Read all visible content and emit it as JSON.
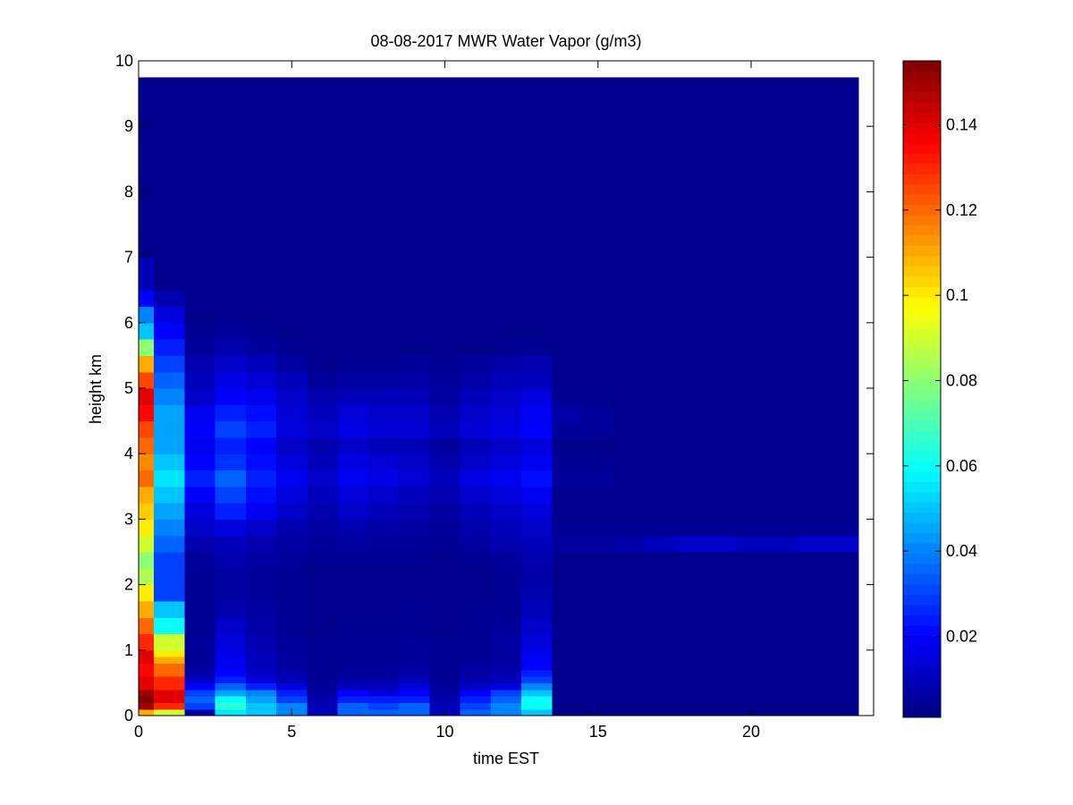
{
  "chart_data": {
    "type": "heatmap",
    "title": "08-08-2017 MWR Water Vapor (g/m3)",
    "xlabel": "time EST",
    "ylabel": "height km",
    "xlim": [
      0,
      24
    ],
    "ylim": [
      0,
      10
    ],
    "x_ticks": [
      0,
      5,
      10,
      15,
      20
    ],
    "y_ticks": [
      0,
      1,
      2,
      3,
      4,
      5,
      6,
      7,
      8,
      9,
      10
    ],
    "colorbar": {
      "colormap": "jet",
      "clim": [
        0.001,
        0.155
      ],
      "ticks": [
        0.02,
        0.04,
        0.06,
        0.08,
        0.1,
        0.12,
        0.14
      ],
      "tick_labels": [
        "0.02",
        "0.04",
        "0.06",
        "0.08",
        "0.1",
        "0.12",
        "0.14"
      ]
    },
    "time_hours": [
      0,
      1,
      2,
      3,
      4,
      5,
      6,
      7,
      8,
      9,
      10,
      11,
      12,
      13,
      14,
      15,
      16,
      17,
      18,
      19,
      20,
      21,
      22,
      23
    ],
    "height_km": [
      0.0,
      0.1,
      0.2,
      0.3,
      0.4,
      0.5,
      0.6,
      0.7,
      0.8,
      0.9,
      1.0,
      1.25,
      1.5,
      1.75,
      2.0,
      2.25,
      2.5,
      2.75,
      3.0,
      3.25,
      3.5,
      3.75,
      4.0,
      4.25,
      4.5,
      4.75,
      5.0,
      5.25,
      5.5,
      5.75,
      6.0,
      6.25,
      6.5,
      7.0,
      7.5,
      8.0,
      8.5,
      9.0,
      9.5
    ],
    "grid_top_km": 9.75,
    "water_vapor_gm3": [
      [
        0.11,
        0.09,
        0.008,
        0.055,
        0.05,
        0.04,
        0.01,
        0.035,
        0.035,
        0.035,
        0.01,
        0.035,
        0.04,
        0.05,
        0.003,
        0.003,
        0.003,
        0.003,
        0.003,
        0.003,
        0.003,
        0.003,
        0.003,
        0.003
      ],
      [
        0.15,
        0.13,
        0.03,
        0.065,
        0.05,
        0.04,
        0.01,
        0.035,
        0.03,
        0.035,
        0.01,
        0.03,
        0.04,
        0.06,
        0.003,
        0.003,
        0.003,
        0.003,
        0.003,
        0.003,
        0.003,
        0.003,
        0.003,
        0.003
      ],
      [
        0.155,
        0.14,
        0.035,
        0.06,
        0.045,
        0.03,
        0.008,
        0.025,
        0.025,
        0.025,
        0.008,
        0.025,
        0.035,
        0.06,
        0.003,
        0.003,
        0.003,
        0.003,
        0.003,
        0.003,
        0.003,
        0.003,
        0.003,
        0.003
      ],
      [
        0.15,
        0.14,
        0.03,
        0.045,
        0.04,
        0.025,
        0.006,
        0.02,
        0.015,
        0.02,
        0.006,
        0.02,
        0.03,
        0.05,
        0.003,
        0.003,
        0.003,
        0.003,
        0.003,
        0.003,
        0.003,
        0.003,
        0.003,
        0.003
      ],
      [
        0.14,
        0.13,
        0.02,
        0.035,
        0.025,
        0.015,
        0.005,
        0.01,
        0.01,
        0.015,
        0.005,
        0.012,
        0.015,
        0.04,
        0.003,
        0.003,
        0.003,
        0.003,
        0.003,
        0.003,
        0.003,
        0.003,
        0.003,
        0.003
      ],
      [
        0.14,
        0.13,
        0.012,
        0.025,
        0.015,
        0.01,
        0.004,
        0.007,
        0.007,
        0.01,
        0.004,
        0.008,
        0.01,
        0.03,
        0.003,
        0.003,
        0.003,
        0.003,
        0.003,
        0.003,
        0.003,
        0.003,
        0.003,
        0.003
      ],
      [
        0.135,
        0.12,
        0.008,
        0.02,
        0.012,
        0.008,
        0.004,
        0.005,
        0.005,
        0.007,
        0.004,
        0.006,
        0.008,
        0.025,
        0.003,
        0.003,
        0.003,
        0.003,
        0.003,
        0.003,
        0.003,
        0.003,
        0.003,
        0.003
      ],
      [
        0.135,
        0.12,
        0.006,
        0.018,
        0.01,
        0.006,
        0.004,
        0.005,
        0.005,
        0.006,
        0.004,
        0.006,
        0.007,
        0.02,
        0.003,
        0.003,
        0.003,
        0.003,
        0.003,
        0.003,
        0.003,
        0.003,
        0.003,
        0.003
      ],
      [
        0.14,
        0.11,
        0.005,
        0.018,
        0.01,
        0.006,
        0.004,
        0.004,
        0.004,
        0.005,
        0.004,
        0.005,
        0.006,
        0.02,
        0.003,
        0.003,
        0.003,
        0.003,
        0.003,
        0.003,
        0.003,
        0.003,
        0.003,
        0.003
      ],
      [
        0.14,
        0.1,
        0.005,
        0.016,
        0.01,
        0.005,
        0.004,
        0.004,
        0.004,
        0.005,
        0.004,
        0.004,
        0.006,
        0.018,
        0.003,
        0.003,
        0.003,
        0.003,
        0.003,
        0.003,
        0.003,
        0.003,
        0.003,
        0.003
      ],
      [
        0.13,
        0.09,
        0.005,
        0.015,
        0.008,
        0.005,
        0.004,
        0.004,
        0.004,
        0.005,
        0.004,
        0.004,
        0.006,
        0.015,
        0.003,
        0.003,
        0.003,
        0.003,
        0.003,
        0.003,
        0.003,
        0.003,
        0.003,
        0.003
      ],
      [
        0.12,
        0.06,
        0.004,
        0.012,
        0.007,
        0.004,
        0.003,
        0.004,
        0.004,
        0.004,
        0.003,
        0.004,
        0.005,
        0.012,
        0.003,
        0.003,
        0.003,
        0.003,
        0.003,
        0.003,
        0.003,
        0.003,
        0.003,
        0.003
      ],
      [
        0.11,
        0.05,
        0.004,
        0.008,
        0.006,
        0.004,
        0.003,
        0.003,
        0.003,
        0.004,
        0.003,
        0.004,
        0.004,
        0.01,
        0.003,
        0.003,
        0.003,
        0.003,
        0.003,
        0.003,
        0.003,
        0.003,
        0.003,
        0.003
      ],
      [
        0.1,
        0.03,
        0.004,
        0.006,
        0.005,
        0.004,
        0.003,
        0.003,
        0.003,
        0.003,
        0.003,
        0.003,
        0.004,
        0.008,
        0.003,
        0.003,
        0.003,
        0.003,
        0.003,
        0.003,
        0.003,
        0.003,
        0.003,
        0.003
      ],
      [
        0.085,
        0.03,
        0.004,
        0.006,
        0.005,
        0.004,
        0.003,
        0.003,
        0.003,
        0.003,
        0.003,
        0.003,
        0.004,
        0.007,
        0.003,
        0.003,
        0.003,
        0.003,
        0.003,
        0.003,
        0.003,
        0.003,
        0.003,
        0.003
      ],
      [
        0.08,
        0.03,
        0.005,
        0.008,
        0.006,
        0.005,
        0.004,
        0.004,
        0.004,
        0.004,
        0.003,
        0.004,
        0.005,
        0.008,
        0.003,
        0.003,
        0.003,
        0.003,
        0.003,
        0.003,
        0.003,
        0.003,
        0.003,
        0.003
      ],
      [
        0.09,
        0.035,
        0.008,
        0.01,
        0.008,
        0.006,
        0.005,
        0.006,
        0.005,
        0.005,
        0.004,
        0.006,
        0.008,
        0.01,
        0.006,
        0.006,
        0.007,
        0.01,
        0.012,
        0.012,
        0.01,
        0.01,
        0.012,
        0.012
      ],
      [
        0.1,
        0.04,
        0.012,
        0.015,
        0.012,
        0.008,
        0.006,
        0.008,
        0.007,
        0.006,
        0.005,
        0.008,
        0.01,
        0.012,
        0.004,
        0.004,
        0.004,
        0.004,
        0.004,
        0.004,
        0.004,
        0.004,
        0.004,
        0.004
      ],
      [
        0.105,
        0.045,
        0.015,
        0.025,
        0.018,
        0.012,
        0.008,
        0.012,
        0.01,
        0.008,
        0.006,
        0.01,
        0.012,
        0.015,
        0.003,
        0.003,
        0.003,
        0.003,
        0.003,
        0.003,
        0.003,
        0.003,
        0.003,
        0.003
      ],
      [
        0.11,
        0.05,
        0.02,
        0.03,
        0.022,
        0.015,
        0.01,
        0.014,
        0.012,
        0.01,
        0.008,
        0.012,
        0.015,
        0.018,
        0.003,
        0.003,
        0.003,
        0.003,
        0.003,
        0.003,
        0.003,
        0.003,
        0.003,
        0.003
      ],
      [
        0.12,
        0.055,
        0.025,
        0.035,
        0.025,
        0.018,
        0.012,
        0.018,
        0.016,
        0.014,
        0.01,
        0.016,
        0.018,
        0.022,
        0.005,
        0.005,
        0.003,
        0.003,
        0.003,
        0.003,
        0.003,
        0.003,
        0.003,
        0.003
      ],
      [
        0.115,
        0.05,
        0.02,
        0.028,
        0.022,
        0.015,
        0.01,
        0.016,
        0.014,
        0.012,
        0.008,
        0.012,
        0.015,
        0.018,
        0.004,
        0.004,
        0.003,
        0.003,
        0.003,
        0.003,
        0.003,
        0.003,
        0.003,
        0.003
      ],
      [
        0.12,
        0.045,
        0.018,
        0.025,
        0.02,
        0.012,
        0.008,
        0.012,
        0.01,
        0.01,
        0.006,
        0.01,
        0.012,
        0.015,
        0.003,
        0.003,
        0.003,
        0.003,
        0.003,
        0.003,
        0.003,
        0.003,
        0.003,
        0.003
      ],
      [
        0.125,
        0.045,
        0.02,
        0.03,
        0.025,
        0.015,
        0.012,
        0.016,
        0.014,
        0.014,
        0.01,
        0.014,
        0.016,
        0.02,
        0.005,
        0.005,
        0.003,
        0.003,
        0.003,
        0.003,
        0.003,
        0.003,
        0.003,
        0.003
      ],
      [
        0.135,
        0.045,
        0.018,
        0.025,
        0.022,
        0.014,
        0.01,
        0.014,
        0.012,
        0.012,
        0.008,
        0.012,
        0.014,
        0.018,
        0.007,
        0.005,
        0.003,
        0.003,
        0.003,
        0.003,
        0.003,
        0.003,
        0.003,
        0.003
      ],
      [
        0.14,
        0.04,
        0.012,
        0.02,
        0.018,
        0.012,
        0.008,
        0.01,
        0.01,
        0.01,
        0.006,
        0.01,
        0.012,
        0.015,
        0.004,
        0.004,
        0.003,
        0.003,
        0.003,
        0.003,
        0.003,
        0.003,
        0.003,
        0.003
      ],
      [
        0.125,
        0.035,
        0.01,
        0.016,
        0.014,
        0.01,
        0.005,
        0.006,
        0.006,
        0.007,
        0.005,
        0.007,
        0.01,
        0.01,
        0.003,
        0.003,
        0.003,
        0.003,
        0.003,
        0.003,
        0.003,
        0.003,
        0.003,
        0.003
      ],
      [
        0.11,
        0.03,
        0.008,
        0.012,
        0.01,
        0.006,
        0.003,
        0.004,
        0.004,
        0.005,
        0.004,
        0.005,
        0.007,
        0.008,
        0.003,
        0.003,
        0.003,
        0.003,
        0.003,
        0.003,
        0.003,
        0.003,
        0.003,
        0.003
      ],
      [
        0.08,
        0.025,
        0.005,
        0.008,
        0.006,
        0.004,
        0.003,
        0.003,
        0.003,
        0.003,
        0.003,
        0.003,
        0.004,
        0.004,
        0.003,
        0.003,
        0.003,
        0.003,
        0.003,
        0.003,
        0.003,
        0.003,
        0.003,
        0.003
      ],
      [
        0.05,
        0.02,
        0.004,
        0.005,
        0.004,
        0.003,
        0.003,
        0.003,
        0.003,
        0.003,
        0.003,
        0.003,
        0.003,
        0.003,
        0.003,
        0.003,
        0.003,
        0.003,
        0.003,
        0.003,
        0.003,
        0.003,
        0.003,
        0.003
      ],
      [
        0.04,
        0.015,
        0.003,
        0.003,
        0.003,
        0.003,
        0.003,
        0.003,
        0.003,
        0.003,
        0.003,
        0.003,
        0.003,
        0.003,
        0.003,
        0.003,
        0.003,
        0.003,
        0.003,
        0.003,
        0.003,
        0.003,
        0.003,
        0.003
      ],
      [
        0.02,
        0.008,
        0.003,
        0.003,
        0.003,
        0.003,
        0.003,
        0.003,
        0.003,
        0.003,
        0.003,
        0.003,
        0.003,
        0.003,
        0.003,
        0.003,
        0.003,
        0.003,
        0.003,
        0.003,
        0.003,
        0.003,
        0.003,
        0.003
      ],
      [
        0.01,
        0.003,
        0.003,
        0.003,
        0.003,
        0.003,
        0.003,
        0.003,
        0.003,
        0.003,
        0.003,
        0.003,
        0.003,
        0.003,
        0.003,
        0.003,
        0.003,
        0.003,
        0.003,
        0.003,
        0.003,
        0.003,
        0.003,
        0.003
      ],
      [
        0.003,
        0.003,
        0.003,
        0.003,
        0.003,
        0.003,
        0.003,
        0.003,
        0.003,
        0.003,
        0.003,
        0.003,
        0.003,
        0.003,
        0.003,
        0.003,
        0.003,
        0.003,
        0.003,
        0.003,
        0.003,
        0.003,
        0.003,
        0.003
      ],
      [
        0.003,
        0.003,
        0.003,
        0.003,
        0.003,
        0.003,
        0.003,
        0.003,
        0.003,
        0.003,
        0.003,
        0.003,
        0.003,
        0.003,
        0.003,
        0.003,
        0.003,
        0.003,
        0.003,
        0.003,
        0.003,
        0.003,
        0.003,
        0.003
      ],
      [
        0.003,
        0.003,
        0.003,
        0.003,
        0.003,
        0.003,
        0.003,
        0.003,
        0.003,
        0.003,
        0.003,
        0.003,
        0.003,
        0.003,
        0.003,
        0.003,
        0.003,
        0.003,
        0.003,
        0.003,
        0.003,
        0.003,
        0.003,
        0.003
      ],
      [
        0.003,
        0.003,
        0.003,
        0.003,
        0.003,
        0.003,
        0.003,
        0.003,
        0.003,
        0.003,
        0.003,
        0.003,
        0.003,
        0.003,
        0.003,
        0.003,
        0.003,
        0.003,
        0.003,
        0.003,
        0.003,
        0.003,
        0.003,
        0.003
      ],
      [
        0.003,
        0.003,
        0.003,
        0.003,
        0.003,
        0.003,
        0.003,
        0.003,
        0.003,
        0.003,
        0.003,
        0.003,
        0.003,
        0.003,
        0.003,
        0.003,
        0.003,
        0.003,
        0.003,
        0.003,
        0.003,
        0.003,
        0.003,
        0.003
      ],
      [
        0.003,
        0.003,
        0.003,
        0.003,
        0.003,
        0.003,
        0.003,
        0.003,
        0.003,
        0.003,
        0.003,
        0.003,
        0.003,
        0.003,
        0.003,
        0.003,
        0.003,
        0.003,
        0.003,
        0.003,
        0.003,
        0.003,
        0.003,
        0.003
      ]
    ]
  }
}
